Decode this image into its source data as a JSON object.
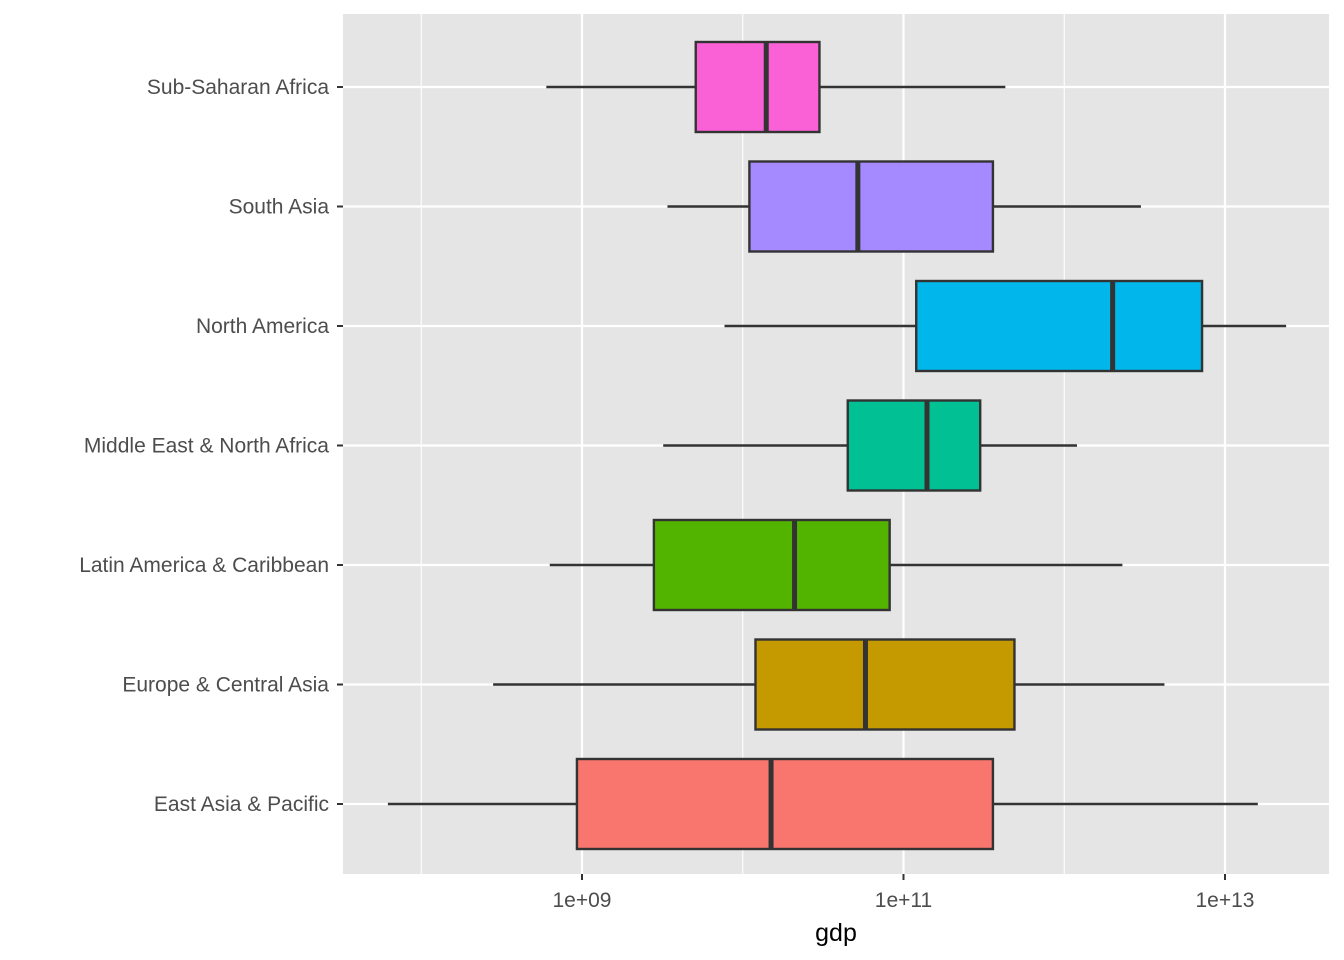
{
  "chart_data": {
    "type": "boxplot",
    "orientation": "horizontal",
    "xlabel": "gdp",
    "ylabel": "",
    "x_scale": "log10",
    "xlim": [
      50000000.0,
      40000000000000.0
    ],
    "x_major_ticks": [
      1000000000.0,
      100000000000.0,
      10000000000000.0
    ],
    "x_tick_labels": [
      "1e+09",
      "1e+11",
      "1e+13"
    ],
    "grid": true,
    "legend": "none",
    "categories": [
      "East Asia & Pacific",
      "Europe & Central Asia",
      "Latin America & Caribbean",
      "Middle East & North Africa",
      "North America",
      "South Asia",
      "Sub-Saharan Africa"
    ],
    "series": [
      {
        "category": "East Asia & Pacific",
        "color": "#F8766D",
        "whisker_low": 62000000.0,
        "q1": 930000000.0,
        "median": 15000000000.0,
        "q3": 360000000000.0,
        "whisker_high": 16000000000000.0
      },
      {
        "category": "Europe & Central Asia",
        "color": "#C49A00",
        "whisker_low": 280000000.0,
        "q1": 12000000000.0,
        "median": 58000000000.0,
        "q3": 490000000000.0,
        "whisker_high": 4200000000000.0
      },
      {
        "category": "Latin America & Caribbean",
        "color": "#53B400",
        "whisker_low": 630000000.0,
        "q1": 2800000000.0,
        "median": 21000000000.0,
        "q3": 82000000000.0,
        "whisker_high": 2300000000000.0
      },
      {
        "category": "Middle East & North Africa",
        "color": "#00C094",
        "whisker_low": 3200000000.0,
        "q1": 45000000000.0,
        "median": 140000000000.0,
        "q3": 300000000000.0,
        "whisker_high": 1200000000000.0
      },
      {
        "category": "North America",
        "color": "#00B6EB",
        "whisker_low": 7700000000.0,
        "q1": 120000000000.0,
        "median": 2000000000000.0,
        "q3": 7200000000000.0,
        "whisker_high": 24000000000000.0
      },
      {
        "category": "South Asia",
        "color": "#A58AFF",
        "whisker_low": 3400000000.0,
        "q1": 11000000000.0,
        "median": 52000000000.0,
        "q3": 360000000000.0,
        "whisker_high": 3000000000000.0
      },
      {
        "category": "Sub-Saharan Africa",
        "color": "#FB61D7",
        "whisker_low": 600000000.0,
        "q1": 5100000000.0,
        "median": 14000000000.0,
        "q3": 30000000000.0,
        "whisker_high": 430000000000.0
      }
    ]
  },
  "colors": {
    "panel_background": "#E5E5E5",
    "grid_major": "#FFFFFF",
    "box_outline": "#333333"
  }
}
